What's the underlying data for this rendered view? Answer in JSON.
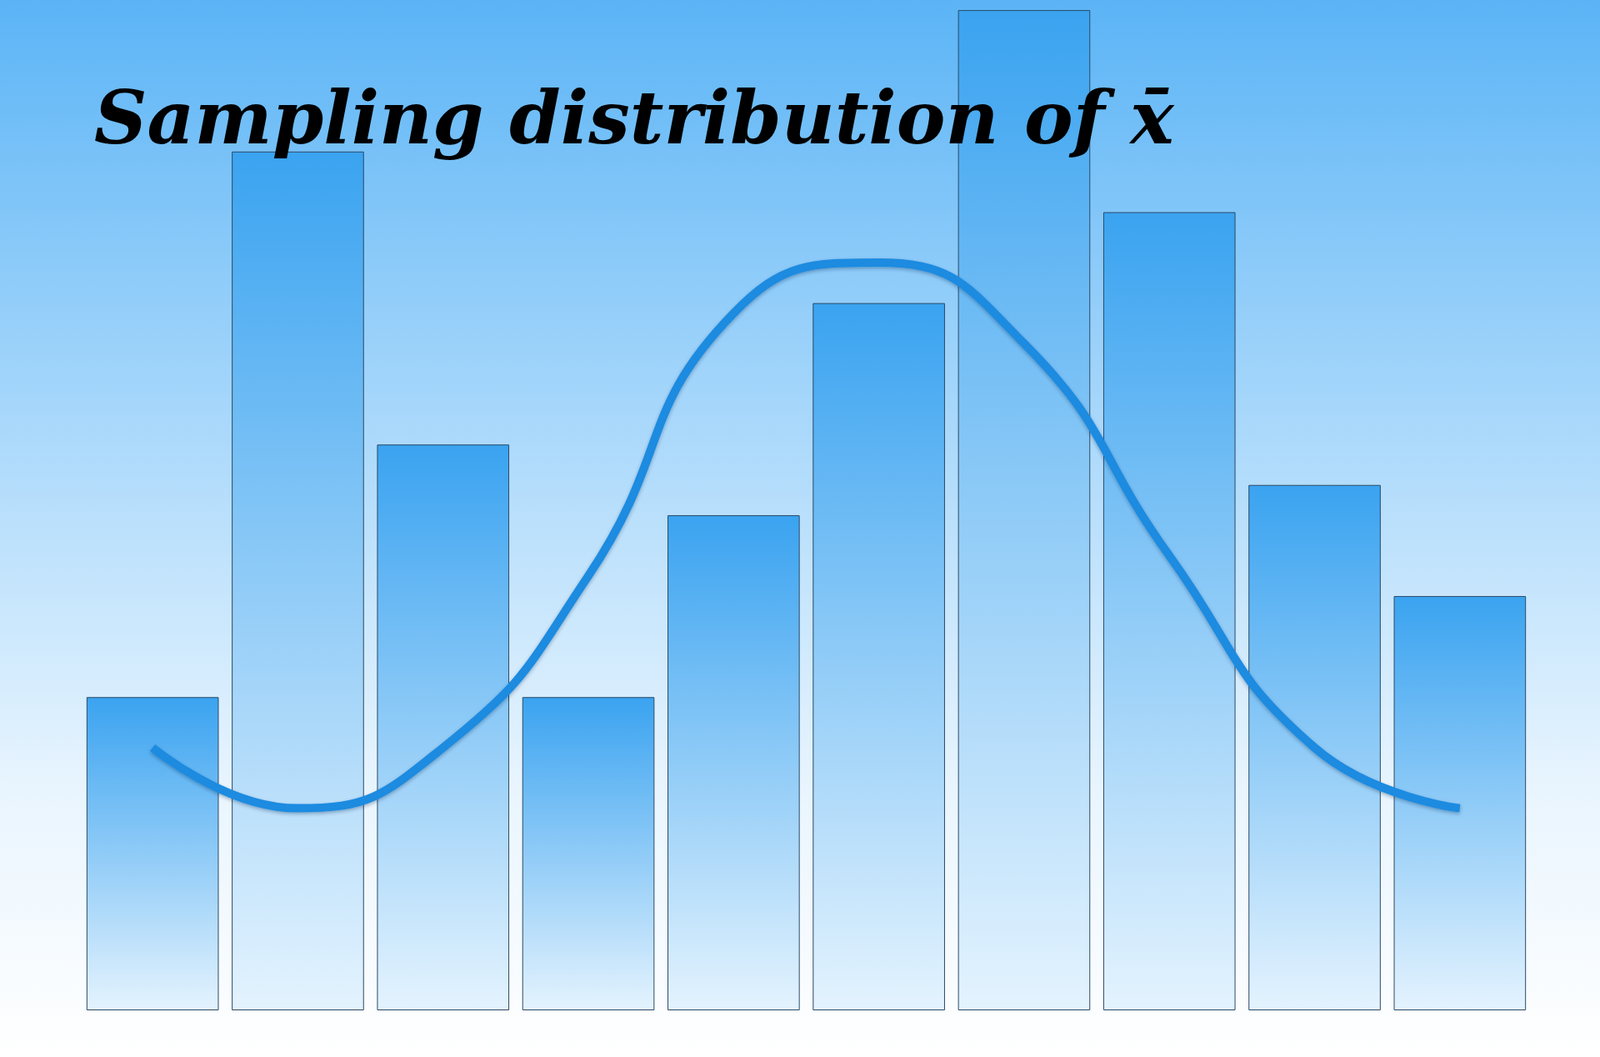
{
  "chart_data": {
    "type": "bar",
    "title": "Sampling distribution of x̄",
    "categories": [
      null,
      null,
      null,
      null,
      null,
      null,
      null,
      null,
      null,
      null
    ],
    "series": [
      {
        "type": "bar",
        "color": "#3aa3f0",
        "values": [
          31,
          85,
          56,
          31,
          49,
          70,
          99,
          79,
          52,
          41
        ]
      },
      {
        "type": "line",
        "color": "#1f8be0",
        "values": [
          26,
          20,
          26,
          43,
          69,
          74,
          66,
          45,
          26,
          20
        ]
      }
    ],
    "ylim": [
      0,
      100
    ],
    "yticks": [
      0,
      100
    ],
    "grid": false,
    "tick_labels": false
  }
}
